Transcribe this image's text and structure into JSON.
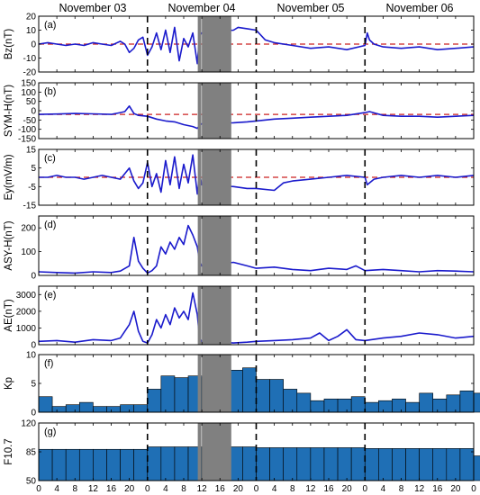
{
  "chart_data": {
    "type": "multi-panel",
    "day_labels": [
      "November 03",
      "November 04",
      "November 05",
      "November 06"
    ],
    "x_ticks": [
      "0",
      "4",
      "8",
      "12",
      "16",
      "20",
      "0",
      "4",
      "8",
      "12",
      "16",
      "20",
      "0",
      "4",
      "8",
      "12",
      "16",
      "20",
      "0",
      "4",
      "8",
      "12",
      "16",
      "20",
      "0"
    ],
    "x_range_hours": [
      0,
      96
    ],
    "day_boundaries_hours": [
      24,
      48,
      72
    ],
    "data_gap_hours": [
      [
        36,
        42.5
      ]
    ],
    "marker_hour": 35.5,
    "colors": {
      "series": "#1a1acc",
      "reference": "#cc2222",
      "bar": "#1f6fb5",
      "gap": "#808080"
    },
    "panels": [
      {
        "id": "bz",
        "tag": "(a)",
        "ylabel": "Bz(nT)",
        "type": "line",
        "ylim": [
          -20,
          20
        ],
        "yticks": [
          -20,
          -10,
          0,
          10,
          20
        ],
        "ref": 0,
        "x": [
          0,
          2,
          4,
          6,
          8,
          10,
          12,
          14,
          16,
          18,
          19,
          20,
          21,
          22,
          23,
          24,
          25,
          26,
          27,
          28,
          29,
          30,
          31,
          32,
          33,
          34,
          35,
          35.5,
          36,
          43,
          44,
          46,
          48,
          50,
          52,
          56,
          60,
          64,
          68,
          72,
          72.5,
          73,
          74,
          76,
          80,
          84,
          88,
          92,
          96
        ],
        "y": [
          0,
          1,
          0,
          -1,
          0,
          -1,
          1,
          0,
          -1,
          2,
          0,
          -6,
          -3,
          3,
          5,
          -8,
          -2,
          8,
          -4,
          10,
          -6,
          12,
          -12,
          4,
          -2,
          8,
          -14,
          6,
          8,
          10,
          12,
          11,
          10,
          3,
          1,
          -1,
          -3,
          -2,
          -4,
          -1,
          8,
          3,
          0,
          -2,
          -3,
          -2,
          -4,
          -3,
          -2
        ]
      },
      {
        "id": "symh",
        "tag": "(b)",
        "ylabel": "SYM-H(nT)",
        "type": "line",
        "ylim": [
          -150,
          150
        ],
        "yticks": [
          -150,
          -100,
          -50,
          0,
          50,
          100,
          150
        ],
        "ref": -20,
        "x": [
          0,
          4,
          8,
          12,
          16,
          18,
          19,
          20,
          21,
          22,
          24,
          26,
          28,
          30,
          32,
          34,
          35,
          35.5,
          36,
          43,
          46,
          48,
          52,
          56,
          60,
          64,
          68,
          72,
          73,
          76,
          80,
          84,
          88,
          92,
          96
        ],
        "y": [
          -20,
          -18,
          -15,
          -17,
          -20,
          -10,
          -5,
          25,
          -15,
          -25,
          -30,
          -45,
          -55,
          -60,
          -75,
          -85,
          -95,
          -80,
          -70,
          -65,
          -60,
          -55,
          -45,
          -40,
          -35,
          -30,
          -25,
          -10,
          -5,
          -25,
          -30,
          -30,
          -35,
          -30,
          -25
        ]
      },
      {
        "id": "ey",
        "tag": "(c)",
        "ylabel": "Ey(mV/m)",
        "type": "line",
        "ylim": [
          -15,
          15
        ],
        "yticks": [
          -15,
          -5,
          5,
          15
        ],
        "ref": 0,
        "x": [
          0,
          2,
          4,
          6,
          8,
          10,
          12,
          14,
          16,
          18,
          20,
          21,
          22,
          23,
          24,
          25,
          26,
          27,
          28,
          29,
          30,
          31,
          32,
          33,
          34,
          35,
          35.5,
          36,
          43,
          46,
          48,
          52,
          54,
          56,
          60,
          64,
          68,
          72,
          72.5,
          74,
          76,
          80,
          84,
          88,
          92,
          96
        ],
        "y": [
          0,
          0,
          1,
          0,
          0,
          -1,
          0,
          1,
          0,
          -1,
          5,
          -2,
          -6,
          -3,
          8,
          -5,
          2,
          -8,
          9,
          -4,
          11,
          -6,
          7,
          -3,
          12,
          -9,
          2,
          -4,
          -5,
          -6,
          -6,
          -7,
          -3,
          -2,
          -1,
          0,
          1,
          0,
          -4,
          -1,
          0,
          1,
          0,
          1,
          0,
          1
        ]
      },
      {
        "id": "asyh",
        "tag": "(d)",
        "ylabel": "ASY-H(nT)",
        "type": "line",
        "ylim": [
          0,
          250
        ],
        "yticks": [
          0,
          100,
          200
        ],
        "x": [
          0,
          4,
          8,
          12,
          16,
          18,
          20,
          21,
          22,
          23,
          24,
          25,
          26,
          27,
          28,
          29,
          30,
          31,
          32,
          33,
          34,
          35,
          35.5,
          36,
          43,
          46,
          48,
          52,
          56,
          60,
          64,
          68,
          70,
          72,
          76,
          80,
          84,
          88,
          92,
          96
        ],
        "y": [
          15,
          12,
          10,
          15,
          12,
          18,
          40,
          160,
          60,
          30,
          10,
          20,
          40,
          120,
          90,
          140,
          110,
          160,
          130,
          210,
          170,
          120,
          60,
          40,
          55,
          40,
          30,
          35,
          25,
          20,
          30,
          25,
          40,
          20,
          25,
          20,
          15,
          20,
          18,
          15
        ]
      },
      {
        "id": "ae",
        "tag": "(e)",
        "ylabel": "AE(nT)",
        "type": "line",
        "ylim": [
          0,
          3500
        ],
        "yticks": [
          0,
          1000,
          2000,
          3000
        ],
        "x": [
          0,
          4,
          8,
          12,
          16,
          18,
          20,
          21,
          22,
          23,
          24,
          25,
          26,
          27,
          28,
          29,
          30,
          31,
          32,
          33,
          34,
          35,
          35.5,
          36,
          43,
          46,
          48,
          52,
          56,
          60,
          62,
          64,
          66,
          68,
          70,
          72,
          76,
          80,
          84,
          88,
          92,
          96
        ],
        "y": [
          200,
          250,
          150,
          300,
          250,
          400,
          1200,
          2000,
          800,
          200,
          100,
          600,
          1500,
          1000,
          1800,
          1200,
          2200,
          1600,
          2000,
          1500,
          3100,
          1800,
          400,
          200,
          100,
          150,
          200,
          250,
          300,
          400,
          700,
          250,
          500,
          900,
          300,
          250,
          400,
          500,
          700,
          600,
          400,
          500
        ]
      },
      {
        "id": "kp",
        "tag": "(f)",
        "ylabel": "Kp",
        "type": "bar",
        "ylim": [
          0,
          10
        ],
        "yticks": [
          0,
          5,
          10
        ],
        "bin_hours": 3,
        "values": [
          2.7,
          1.0,
          1.3,
          1.7,
          1.0,
          1.0,
          1.3,
          1.3,
          4.0,
          6.3,
          6.0,
          6.3,
          6.0,
          6.7,
          7.3,
          7.7,
          5.7,
          5.7,
          4.0,
          3.3,
          2.0,
          2.3,
          2.3,
          2.7,
          1.7,
          2.0,
          2.3,
          1.7,
          3.3,
          2.3,
          3.0,
          3.7,
          3.3,
          3.0,
          3.7,
          3.0,
          4.0,
          3.7,
          3.3,
          3.3,
          3.3,
          3.7,
          2.0,
          3.7,
          3.3,
          3.0,
          3.0,
          3.7
        ]
      },
      {
        "id": "f107",
        "tag": "(g)",
        "ylabel": "F10.7",
        "type": "bar",
        "ylim": [
          50,
          120
        ],
        "yticks": [
          50,
          85,
          120
        ],
        "bin_hours": 3,
        "values": [
          88,
          88,
          88,
          88,
          88,
          88,
          88,
          88,
          91,
          91,
          91,
          91,
          91,
          91,
          91,
          91,
          90,
          90,
          90,
          90,
          90,
          90,
          90,
          90,
          89,
          89,
          89,
          89,
          89,
          89,
          89,
          89,
          80,
          80,
          80,
          80,
          80,
          80,
          80,
          80,
          80,
          80,
          80,
          80,
          80,
          80,
          80,
          82
        ]
      }
    ]
  }
}
